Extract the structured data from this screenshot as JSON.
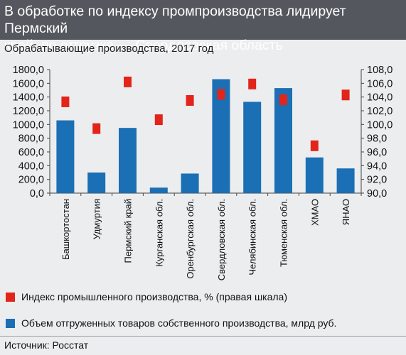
{
  "header": {
    "title_line1": "В обработке по индексу промпроизводства лидирует Пермский",
    "title_line2": "край, по отгрузке — Свердловская область"
  },
  "subtitle": "Обрабатывающие производства, 2017 год",
  "legend": {
    "index_label": "Индекс промышленного производства, % (правая шкала)",
    "volume_label": "Объем отгруженных товаров собственного производства, млрд руб."
  },
  "source": "Источник: Росстат",
  "colors": {
    "bar": "#1a6fb5",
    "marker": "#e2241b",
    "header": "#54585e"
  },
  "chart_data": {
    "type": "bar",
    "categories": [
      "Башкортостан",
      "Удмуртия",
      "Пермский край",
      "Курганская обл.",
      "Оренбургская обл.",
      "Свердловская обл.",
      "Челябинская обл.",
      "Тюменская обл.",
      "ХМАО",
      "ЯНАО"
    ],
    "series": [
      {
        "name": "Объем отгруженных товаров собственного производства, млрд руб.",
        "type": "bar",
        "axis": "left",
        "values": [
          1060,
          300,
          950,
          80,
          285,
          1660,
          1330,
          1530,
          520,
          360
        ]
      },
      {
        "name": "Индекс промышленного производства, % (правая шкала)",
        "type": "marker",
        "axis": "right",
        "values": [
          103.3,
          99.4,
          106.2,
          100.7,
          103.5,
          104.4,
          105.9,
          103.6,
          96.9,
          104.3
        ]
      }
    ],
    "y_left": {
      "min": 0,
      "max": 1800,
      "step": 200,
      "ticks": [
        "0,0",
        "200,0",
        "400,0",
        "600,0",
        "800,0",
        "1000,0",
        "1200,0",
        "1400,0",
        "1600,0",
        "1800,0"
      ]
    },
    "y_right": {
      "min": 90,
      "max": 108,
      "step": 2,
      "ticks": [
        "90,0",
        "92,0",
        "94,0",
        "96,0",
        "98,0",
        "100,0",
        "102,0",
        "104,0",
        "106,0",
        "108,0"
      ]
    },
    "grid": false,
    "legend_position": "bottom"
  }
}
